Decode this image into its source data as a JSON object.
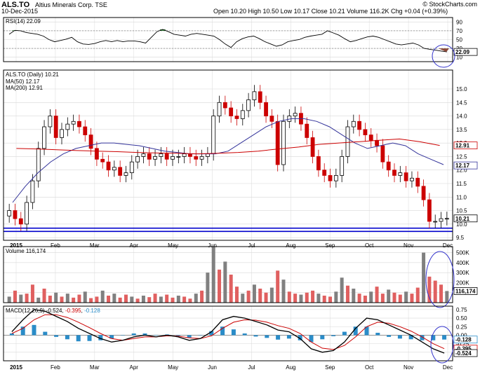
{
  "header": {
    "symbol": "ALS.TO",
    "company": "Altius Minerals Corp. TSE",
    "date": "10-Dec-2015",
    "ohlc": "Open 10.20  High 10.50  Low 10.17  Close 10.21  Volume 116.2K  Chg +0.04 (+0.39%)",
    "watermark": "© StockCharts.com"
  },
  "colors": {
    "up": "#000000",
    "down": "#cc0000",
    "ma50": "#33339a",
    "ma200": "#cc0000",
    "volume_up": "#808080",
    "volume_down": "#e06060",
    "macd_hist": "#2a8cc8",
    "signal": "#cc0000",
    "annotation": "#3333cc",
    "hline": "#0000cc",
    "rsi_fill": "#2e7d32",
    "rsi_fill_low": "#8b4a3a"
  },
  "chart_data": [
    {
      "type": "line",
      "label": "RSI(14) 22.09",
      "ylim": [
        0,
        100
      ],
      "yticks": [
        10,
        30,
        50,
        70,
        90
      ],
      "ytick_labels": [
        "10",
        "30",
        "50",
        "70",
        "90"
      ],
      "thresholds": [
        30,
        70
      ],
      "last_value_label": "22.09",
      "values": [
        62,
        71,
        70,
        66,
        64,
        62,
        58,
        50,
        45,
        48,
        51,
        55,
        45,
        40,
        39,
        41,
        45,
        48,
        45,
        48,
        45,
        47,
        47,
        45,
        42,
        55,
        68,
        73,
        68,
        62,
        60,
        58,
        62,
        64,
        62,
        60,
        58,
        50,
        40,
        32,
        45,
        52,
        56,
        58,
        52,
        45,
        40,
        35,
        38,
        45,
        48,
        50,
        55,
        58,
        60,
        62,
        70,
        65,
        60,
        52,
        45,
        48,
        52,
        56,
        58,
        55,
        50,
        45,
        40,
        38,
        40,
        42,
        38,
        30,
        28,
        26,
        24,
        22.09
      ]
    },
    {
      "type": "candlestick",
      "label": "ALS.TO (Daily) 10.21",
      "ma_labels": [
        "MA(50) 12.17",
        "MA(200) 12.91"
      ],
      "ylim": [
        9.4,
        15.7
      ],
      "yticks": [
        9.5,
        10.0,
        10.5,
        11.0,
        11.5,
        12.0,
        12.5,
        13.0,
        13.5,
        14.0,
        14.5,
        15.0
      ],
      "ytick_labels": [
        "9.5",
        "10.0",
        "10.5",
        "11.0",
        "11.5",
        "12.0",
        "12.5",
        "13.0",
        "13.5",
        "14.0",
        "14.5",
        "15.0"
      ],
      "last_labels": [
        "12.91",
        "12.17",
        "10.21"
      ],
      "hlines": [
        9.85,
        9.73
      ],
      "x_labels": [
        "2015",
        "Feb",
        "Mar",
        "Apr",
        "May",
        "Jun",
        "Jul",
        "Aug",
        "Sep",
        "Oct",
        "Nov",
        "Dec"
      ],
      "close": [
        10.5,
        10.2,
        10.0,
        10.8,
        11.6,
        12.8,
        13.6,
        14.0,
        13.2,
        13.5,
        13.7,
        13.8,
        13.6,
        13.3,
        12.8,
        12.4,
        12.3,
        12.0,
        12.1,
        11.8,
        11.9,
        12.3,
        12.5,
        12.6,
        12.4,
        12.5,
        12.6,
        12.4,
        12.5,
        12.5,
        12.6,
        12.5,
        12.4,
        12.5,
        12.6,
        14.0,
        14.5,
        14.3,
        14.0,
        13.9,
        14.2,
        14.6,
        14.9,
        14.5,
        14.0,
        13.8,
        12.2,
        13.8,
        14.0,
        14.1,
        13.7,
        13.2,
        12.5,
        12.0,
        11.8,
        11.6,
        11.8,
        12.5,
        13.6,
        13.8,
        13.5,
        13.3,
        13.1,
        12.9,
        12.3,
        12.0,
        11.8,
        11.9,
        11.6,
        11.7,
        11.4,
        10.9,
        10.1,
        10.1,
        10.2,
        10.21
      ],
      "ma50": [
        10.8,
        11.4,
        11.9,
        12.3,
        12.6,
        12.8,
        12.9,
        13.0,
        13.0,
        12.95,
        12.9,
        12.8,
        12.7,
        12.65,
        12.6,
        12.6,
        12.6,
        12.7,
        13.0,
        13.3,
        13.6,
        13.8,
        13.9,
        13.9,
        13.8,
        13.6,
        13.3,
        13.0,
        12.8,
        12.9,
        13.0,
        12.9,
        12.6,
        12.4,
        12.2
      ],
      "ma200": [
        12.8,
        12.78,
        12.75,
        12.72,
        12.7,
        12.68,
        12.65,
        12.63,
        12.62,
        12.6,
        12.62,
        12.65,
        12.7,
        12.78,
        12.85,
        12.95,
        13.0,
        13.05,
        13.1,
        13.15,
        13.05,
        12.91
      ]
    },
    {
      "type": "bar",
      "label": "Volume 116,174",
      "ylim": [
        0,
        560
      ],
      "yticks": [
        100,
        200,
        300,
        400,
        500
      ],
      "ytick_labels": [
        "100K",
        "200K",
        "300K",
        "400K",
        "500K"
      ],
      "last_value_label": "116,174",
      "values": [
        60,
        120,
        80,
        90,
        180,
        50,
        140,
        70,
        100,
        60,
        90,
        50,
        80,
        110,
        45,
        60,
        120,
        70,
        90,
        50,
        80,
        60,
        40,
        70,
        55,
        90,
        60,
        80,
        50,
        70,
        60,
        40,
        90,
        120,
        300,
        560,
        330,
        410,
        280,
        160,
        90,
        120,
        180,
        140,
        100,
        150,
        320,
        230,
        110,
        90,
        80,
        100,
        120,
        90,
        70,
        60,
        110,
        250,
        170,
        140,
        90,
        70,
        110,
        160,
        90,
        130,
        100,
        80,
        110,
        90,
        150,
        500,
        260,
        220,
        180,
        116
      ],
      "up_flags": [
        1,
        0,
        1,
        0,
        0,
        1,
        0,
        0,
        1,
        0,
        1,
        0,
        0,
        1,
        0,
        0,
        1,
        0,
        1,
        0,
        0,
        1,
        0,
        1,
        0,
        0,
        1,
        0,
        0,
        1,
        0,
        0,
        1,
        0,
        1,
        1,
        0,
        1,
        0,
        0,
        1,
        0,
        1,
        0,
        0,
        1,
        0,
        1,
        0,
        0,
        1,
        0,
        0,
        1,
        0,
        0,
        1,
        1,
        0,
        1,
        0,
        0,
        1,
        0,
        0,
        1,
        0,
        0,
        1,
        0,
        0,
        1,
        0,
        0,
        0,
        1
      ]
    },
    {
      "type": "line",
      "label": "MACD(12,26,9) -0.524, -0.395, -0.128",
      "label_parts": [
        "MACD(12,26,9)",
        "-0.524",
        ", ",
        "-0.395",
        ", ",
        "-0.128"
      ],
      "ylim": [
        -0.75,
        0.85
      ],
      "yticks": [
        0.75,
        0.5,
        0.25,
        0.0,
        -0.25,
        -0.5
      ],
      "ytick_labels": [
        "0.75",
        "0.50",
        "0.25",
        "0.00",
        "-0.25",
        "-0.50"
      ],
      "last_labels": [
        "-0.128",
        "-0.395",
        "-0.524"
      ],
      "macd": [
        0.1,
        0.45,
        0.75,
        0.7,
        0.55,
        0.4,
        0.2,
        0.05,
        -0.1,
        -0.2,
        -0.15,
        -0.05,
        0.0,
        -0.05,
        0.0,
        -0.05,
        -0.15,
        -0.1,
        0.1,
        0.45,
        0.55,
        0.5,
        0.4,
        0.3,
        0.15,
        0.1,
        -0.1,
        -0.4,
        -0.5,
        -0.45,
        -0.2,
        0.2,
        0.5,
        0.45,
        0.3,
        0.15,
        0.0,
        -0.2,
        -0.4,
        -0.524
      ],
      "signal": [
        0.05,
        0.2,
        0.45,
        0.6,
        0.6,
        0.52,
        0.38,
        0.22,
        0.05,
        -0.1,
        -0.15,
        -0.1,
        -0.05,
        -0.05,
        -0.02,
        -0.03,
        -0.08,
        -0.1,
        -0.02,
        0.2,
        0.38,
        0.45,
        0.44,
        0.38,
        0.28,
        0.2,
        0.05,
        -0.2,
        -0.38,
        -0.42,
        -0.3,
        -0.05,
        0.25,
        0.38,
        0.35,
        0.25,
        0.12,
        -0.05,
        -0.25,
        -0.395
      ],
      "histogram": [
        0.05,
        0.25,
        0.3,
        0.1,
        -0.05,
        -0.12,
        -0.18,
        -0.17,
        -0.15,
        -0.1,
        0.0,
        0.05,
        0.05,
        0.0,
        0.02,
        -0.02,
        -0.07,
        0.0,
        0.12,
        0.25,
        0.17,
        0.05,
        -0.04,
        -0.08,
        -0.13,
        -0.1,
        -0.15,
        -0.2,
        -0.12,
        -0.03,
        0.1,
        0.25,
        0.25,
        0.07,
        -0.05,
        -0.1,
        -0.12,
        -0.15,
        -0.15,
        -0.128
      ]
    }
  ]
}
